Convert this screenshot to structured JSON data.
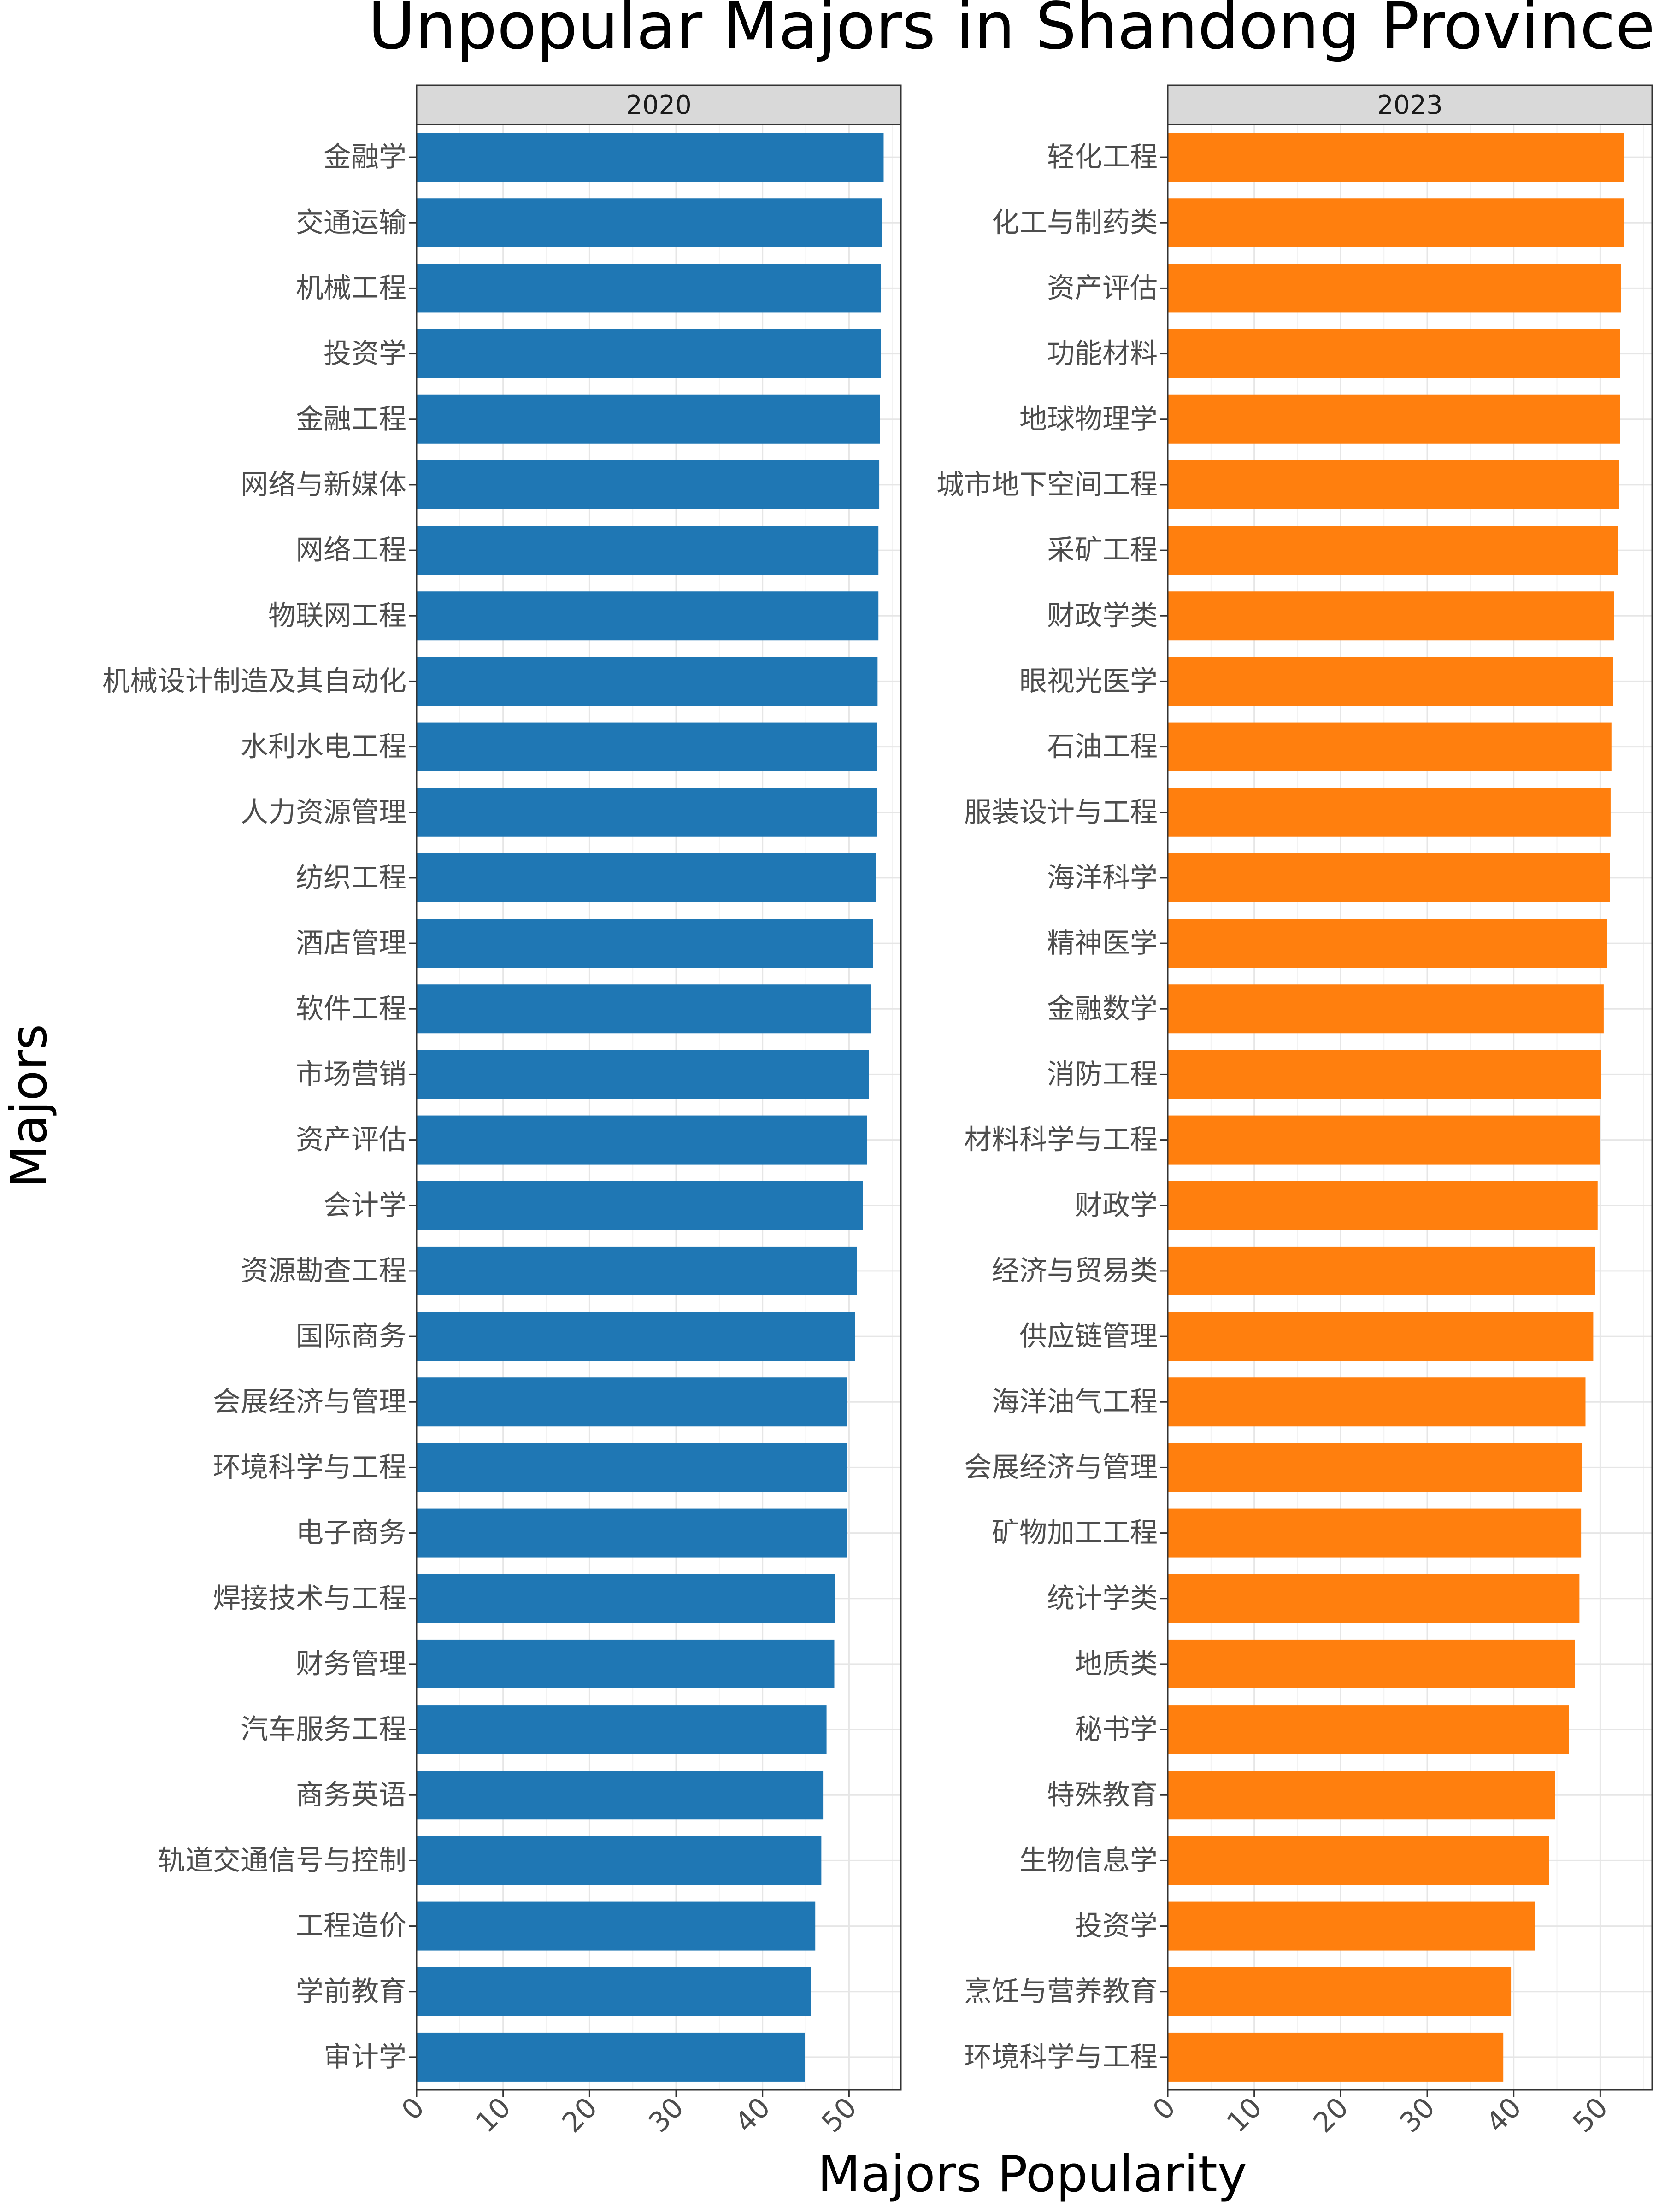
{
  "chart_data": {
    "type": "bar",
    "orientation": "horizontal",
    "title": "Unpopular Majors in Shandong Province",
    "xlabel": "Majors Popularity",
    "ylabel": "Majors",
    "xlim": [
      0,
      56
    ],
    "x_ticks": [
      "0",
      "10",
      "20",
      "30",
      "40",
      "50"
    ],
    "grid": true,
    "legend": "none",
    "panels": [
      {
        "name": "2020",
        "color": "#1f77b4",
        "categories": [
          "金融学",
          "交通运输",
          "机械工程",
          "投资学",
          "金融工程",
          "网络与新媒体",
          "网络工程",
          "物联网工程",
          "机械设计制造及其自动化",
          "水利水电工程",
          "人力资源管理",
          "纺织工程",
          "酒店管理",
          "软件工程",
          "市场营销",
          "资产评估",
          "会计学",
          "资源勘查工程",
          "国际商务",
          "会展经济与管理",
          "环境科学与工程",
          "电子商务",
          "焊接技术与工程",
          "财务管理",
          "汽车服务工程",
          "商务英语",
          "轨道交通信号与控制",
          "工程造价",
          "学前教育",
          "审计学"
        ],
        "values": [
          54.0,
          53.8,
          53.7,
          53.7,
          53.6,
          53.5,
          53.4,
          53.4,
          53.3,
          53.2,
          53.2,
          53.1,
          52.8,
          52.5,
          52.3,
          52.1,
          51.6,
          50.9,
          50.7,
          49.8,
          49.8,
          49.8,
          48.4,
          48.3,
          47.4,
          47.0,
          46.8,
          46.1,
          45.6,
          44.9
        ]
      },
      {
        "name": "2023",
        "color": "#ff7f0e",
        "categories": [
          "轻化工程",
          "化工与制药类",
          "资产评估",
          "功能材料",
          "地球物理学",
          "城市地下空间工程",
          "采矿工程",
          "财政学类",
          "眼视光医学",
          "石油工程",
          "服装设计与工程",
          "海洋科学",
          "精神医学",
          "金融数学",
          "消防工程",
          "材料科学与工程",
          "财政学",
          "经济与贸易类",
          "供应链管理",
          "海洋油气工程",
          "会展经济与管理",
          "矿物加工工程",
          "统计学类",
          "地质类",
          "秘书学",
          "特殊教育",
          "生物信息学",
          "投资学",
          "烹饪与营养教育",
          "环境科学与工程"
        ],
        "values": [
          52.8,
          52.8,
          52.4,
          52.3,
          52.3,
          52.2,
          52.1,
          51.6,
          51.5,
          51.3,
          51.2,
          51.1,
          50.8,
          50.4,
          50.1,
          50.0,
          49.7,
          49.4,
          49.2,
          48.3,
          47.9,
          47.8,
          47.6,
          47.1,
          46.4,
          44.8,
          44.1,
          42.5,
          39.7,
          38.8
        ]
      }
    ]
  }
}
